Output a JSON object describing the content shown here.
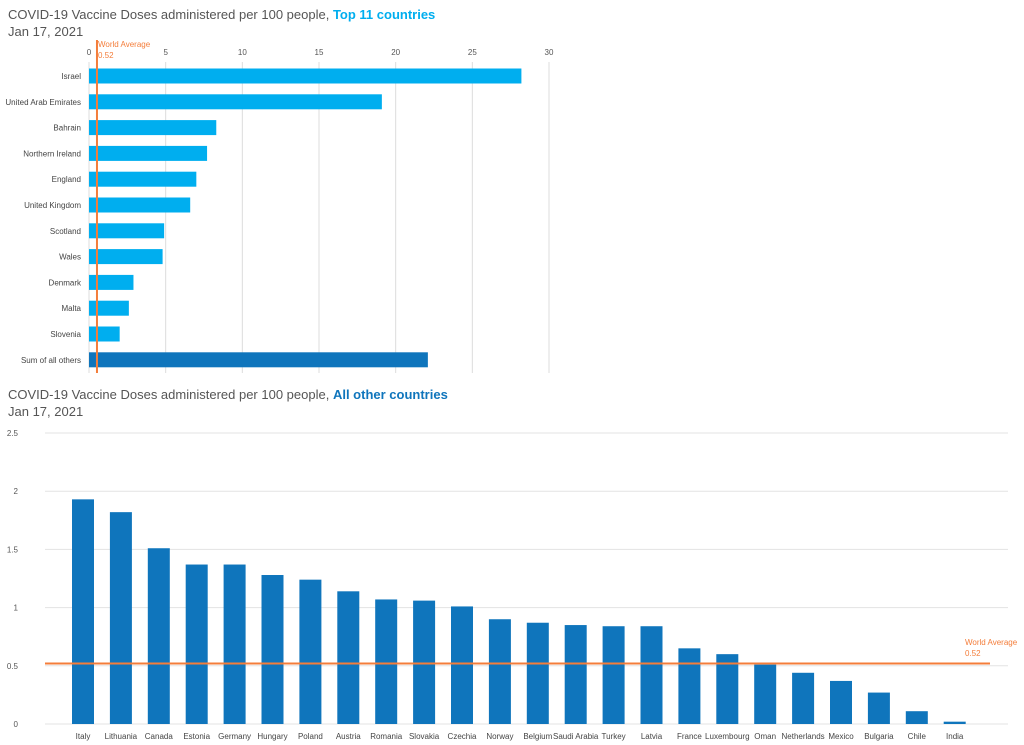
{
  "chart_data": [
    {
      "type": "bar",
      "orientation": "horizontal",
      "title": "COVID-19 Vaccine Doses administered per 100 people,",
      "title_highlight": "Top 11 countries",
      "subtitle": "Jan 17, 2021",
      "categories": [
        "Israel",
        "United Arab Emirates",
        "Bahrain",
        "Northern Ireland",
        "England",
        "United Kingdom",
        "Scotland",
        "Wales",
        "Denmark",
        "Malta",
        "Slovenia",
        "Sum of all others"
      ],
      "values": [
        28.2,
        19.1,
        8.3,
        7.7,
        7.0,
        6.6,
        4.9,
        4.8,
        2.9,
        2.6,
        2.0,
        22.1
      ],
      "xlim": [
        0,
        30
      ],
      "xticks": [
        0,
        5,
        10,
        15,
        20,
        25,
        30
      ],
      "reference_line": {
        "label": "World Average",
        "value_label": "0.52",
        "value": 0.52
      },
      "grid": true,
      "colors": {
        "bar": "#00aeef",
        "highlight_bar": "#0f75bc",
        "reference": "#f47d3a",
        "title_highlight": "#00aeef"
      }
    },
    {
      "type": "bar",
      "orientation": "vertical",
      "title": "COVID-19 Vaccine Doses administered per 100 people,",
      "title_highlight": "All other countries",
      "subtitle": "Jan 17, 2021",
      "categories": [
        "Italy",
        "Lithuania",
        "Canada",
        "Estonia",
        "Germany",
        "Hungary",
        "Poland",
        "Austria",
        "Romania",
        "Slovakia",
        "Czechia",
        "Norway",
        "Belgium",
        "Saudi Arabia",
        "Turkey",
        "Latvia",
        "France",
        "Luxembourg",
        "Oman",
        "Netherlands",
        "Mexico",
        "Bulgaria",
        "Chile",
        "India"
      ],
      "values": [
        1.93,
        1.82,
        1.51,
        1.37,
        1.37,
        1.28,
        1.24,
        1.14,
        1.07,
        1.06,
        1.01,
        0.9,
        0.87,
        0.85,
        0.84,
        0.84,
        0.65,
        0.6,
        0.51,
        0.44,
        0.37,
        0.27,
        0.11,
        0.02
      ],
      "ylim": [
        0,
        2.5
      ],
      "yticks": [
        "0",
        "0.5",
        "1",
        "1.5",
        "2",
        "2.5"
      ],
      "reference_line": {
        "label": "World Average",
        "value_label": "0.52",
        "value": 0.52
      },
      "grid": true,
      "colors": {
        "bar": "#0f75bc",
        "reference": "#f47d3a",
        "title_highlight": "#0f75bc"
      }
    }
  ]
}
